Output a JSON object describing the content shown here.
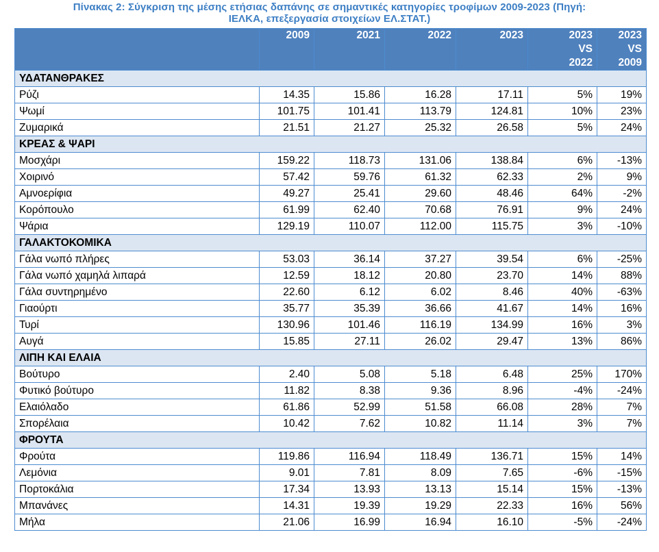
{
  "title_line1": "Πίνακας 2: Σύγκριση της μέσης ετήσιας δαπάνης σε σημαντικές κατηγορίες τροφίμων 2009-2023 (Πηγή:",
  "title_line2": "ΙΕΛΚΑ, επεξεργασία στοιχείων ΕΛ.ΣΤΑΤ.)",
  "header": {
    "c0": "",
    "c1": "2009",
    "c2": "2021",
    "c3": "2022",
    "c4": "2023",
    "c5": [
      "2023",
      "VS",
      "2022"
    ],
    "c6": [
      "2023",
      "VS",
      "2009"
    ]
  },
  "colors": {
    "header_bg": "#4f81bd",
    "category_bg": "#dce6f2",
    "border": "#4c8bd0",
    "title": "#3d7fc4"
  },
  "sections": [
    {
      "category": "ΥΔΑΤΑΝΘΡΑΚΕΣ",
      "rows": [
        [
          "Ρύζι",
          "14.35",
          "15.86",
          "16.28",
          "17.11",
          "5%",
          "19%"
        ],
        [
          "Ψωμί",
          "101.75",
          "101.41",
          "113.79",
          "124.81",
          "10%",
          "23%"
        ],
        [
          "Ζυμαρικά",
          "21.51",
          "21.27",
          "25.32",
          "26.58",
          "5%",
          "24%"
        ]
      ]
    },
    {
      "category": "ΚΡΕΑΣ & ΨΑΡΙ",
      "rows": [
        [
          "Μοσχάρι",
          "159.22",
          "118.73",
          "131.06",
          "138.84",
          "6%",
          "-13%"
        ],
        [
          "Χοιρινό",
          "57.42",
          "59.76",
          "61.32",
          "62.33",
          "2%",
          "9%"
        ],
        [
          "Αμνοερίφια",
          "49.27",
          "25.41",
          "29.60",
          "48.46",
          "64%",
          "-2%"
        ],
        [
          "Κορόπουλο",
          "61.99",
          "62.40",
          "70.68",
          "76.91",
          "9%",
          "24%"
        ],
        [
          "Ψάρια",
          "129.19",
          "110.07",
          "112.00",
          "115.75",
          "3%",
          "-10%"
        ]
      ]
    },
    {
      "category": "ΓΑΛΑΚΤΟΚΟΜΙΚΑ",
      "rows": [
        [
          "Γάλα νωπό  πλήρες",
          "53.03",
          "36.14",
          "37.27",
          "39.54",
          "6%",
          "-25%"
        ],
        [
          "Γάλα νωπό  χαμηλά λιπαρά",
          "12.59",
          "18.12",
          "20.80",
          "23.70",
          "14%",
          "88%"
        ],
        [
          "Γάλα συντηρημένο",
          "22.60",
          "6.12",
          "6.02",
          "8.46",
          "40%",
          "-63%"
        ],
        [
          "Γιαούρτι",
          "35.77",
          "35.39",
          "36.66",
          "41.67",
          "14%",
          "16%"
        ],
        [
          "Τυρί",
          "130.96",
          "101.46",
          "116.19",
          "134.99",
          "16%",
          "3%"
        ],
        [
          "Αυγά",
          "15.85",
          "27.11",
          "26.02",
          "29.47",
          "13%",
          "86%"
        ]
      ]
    },
    {
      "category": "ΛΙΠΗ ΚΑΙ ΕΛΑΙΑ",
      "rows": [
        [
          "Βούτυρο",
          "2.40",
          "5.08",
          "5.18",
          "6.48",
          "25%",
          "170%"
        ],
        [
          "Φυτικό βούτυρο",
          "11.82",
          "8.38",
          "9.36",
          "8.96",
          "-4%",
          "-24%"
        ],
        [
          "Ελαιόλαδο",
          "61.86",
          "52.99",
          "51.58",
          "66.08",
          "28%",
          "7%"
        ],
        [
          "Σπορέλαια",
          "10.42",
          "7.62",
          "10.82",
          "11.14",
          "3%",
          "7%"
        ]
      ]
    },
    {
      "category": "ΦΡΟΥΤΑ",
      "rows": [
        [
          "Φρούτα",
          "119.86",
          "116.94",
          "118.49",
          "136.71",
          "15%",
          "14%"
        ],
        [
          "Λεμόνια",
          "9.01",
          "7.81",
          "8.09",
          "7.65",
          "-6%",
          "-15%"
        ],
        [
          "Πορτοκάλια",
          "17.34",
          "13.93",
          "13.13",
          "15.14",
          "15%",
          "-13%"
        ],
        [
          "Μπανάνες",
          "14.31",
          "19.39",
          "19.29",
          "22.33",
          "16%",
          "56%"
        ],
        [
          "Μήλα",
          "21.06",
          "16.99",
          "16.94",
          "16.10",
          "-5%",
          "-24%"
        ]
      ]
    }
  ]
}
